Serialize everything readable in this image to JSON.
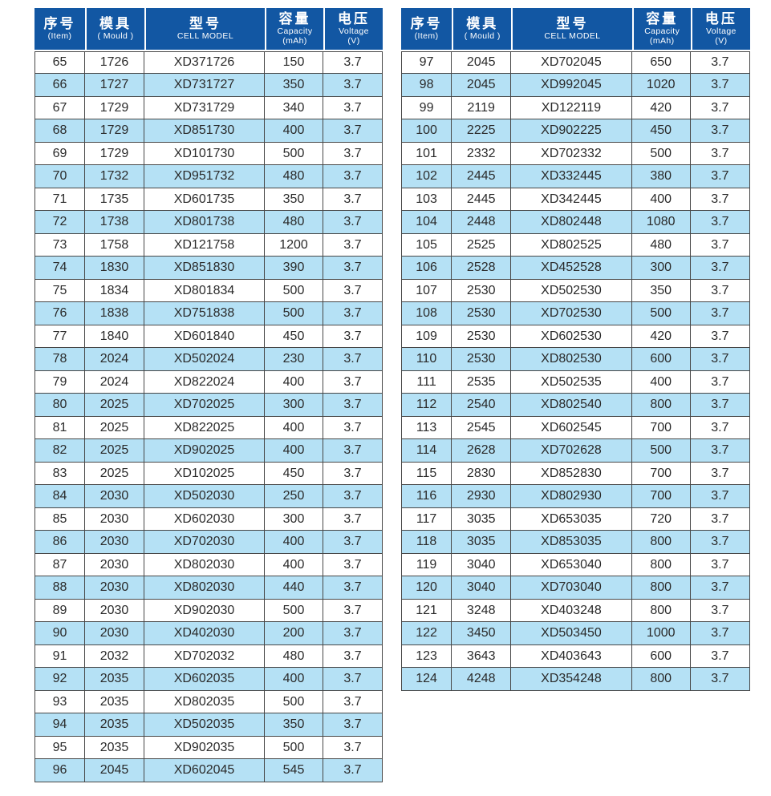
{
  "colors": {
    "header_bg": "#1257a3",
    "header_text": "#ffffff",
    "row_alt_bg": "#b5e1f5",
    "row_bg": "#ffffff",
    "border": "#474747",
    "text": "#2a2a2a"
  },
  "columns": [
    {
      "key": "item",
      "zh": "序号",
      "sub": [
        "(Item)"
      ]
    },
    {
      "key": "mould",
      "zh": "模具",
      "sub": [
        "( Mould )"
      ]
    },
    {
      "key": "model",
      "zh": "型号",
      "sub": [
        "CELL MODEL"
      ]
    },
    {
      "key": "capacity",
      "zh": "容量",
      "sub": [
        "Capacity",
        "(mAh)"
      ]
    },
    {
      "key": "voltage",
      "zh": "电压",
      "sub": [
        "Voltage",
        "(V)"
      ]
    }
  ],
  "tables": [
    {
      "name": "left",
      "rows": [
        [
          "65",
          "1726",
          "XD371726",
          "150",
          "3.7"
        ],
        [
          "66",
          "1727",
          "XD731727",
          "350",
          "3.7"
        ],
        [
          "67",
          "1729",
          "XD731729",
          "340",
          "3.7"
        ],
        [
          "68",
          "1729",
          "XD851730",
          "400",
          "3.7"
        ],
        [
          "69",
          "1729",
          "XD101730",
          "500",
          "3.7"
        ],
        [
          "70",
          "1732",
          "XD951732",
          "480",
          "3.7"
        ],
        [
          "71",
          "1735",
          "XD601735",
          "350",
          "3.7"
        ],
        [
          "72",
          "1738",
          "XD801738",
          "480",
          "3.7"
        ],
        [
          "73",
          "1758",
          "XD121758",
          "1200",
          "3.7"
        ],
        [
          "74",
          "1830",
          "XD851830",
          "390",
          "3.7"
        ],
        [
          "75",
          "1834",
          "XD801834",
          "500",
          "3.7"
        ],
        [
          "76",
          "1838",
          "XD751838",
          "500",
          "3.7"
        ],
        [
          "77",
          "1840",
          "XD601840",
          "450",
          "3.7"
        ],
        [
          "78",
          "2024",
          "XD502024",
          "230",
          "3.7"
        ],
        [
          "79",
          "2024",
          "XD822024",
          "400",
          "3.7"
        ],
        [
          "80",
          "2025",
          "XD702025",
          "300",
          "3.7"
        ],
        [
          "81",
          "2025",
          "XD822025",
          "400",
          "3.7"
        ],
        [
          "82",
          "2025",
          "XD902025",
          "400",
          "3.7"
        ],
        [
          "83",
          "2025",
          "XD102025",
          "450",
          "3.7"
        ],
        [
          "84",
          "2030",
          "XD502030",
          "250",
          "3.7"
        ],
        [
          "85",
          "2030",
          "XD602030",
          "300",
          "3.7"
        ],
        [
          "86",
          "2030",
          "XD702030",
          "400",
          "3.7"
        ],
        [
          "87",
          "2030",
          "XD802030",
          "400",
          "3.7"
        ],
        [
          "88",
          "2030",
          "XD802030",
          "440",
          "3.7"
        ],
        [
          "89",
          "2030",
          "XD902030",
          "500",
          "3.7"
        ],
        [
          "90",
          "2030",
          "XD402030",
          "200",
          "3.7"
        ],
        [
          "91",
          "2032",
          "XD702032",
          "480",
          "3.7"
        ],
        [
          "92",
          "2035",
          "XD602035",
          "400",
          "3.7"
        ],
        [
          "93",
          "2035",
          "XD802035",
          "500",
          "3.7"
        ],
        [
          "94",
          "2035",
          "XD502035",
          "350",
          "3.7"
        ],
        [
          "95",
          "2035",
          "XD902035",
          "500",
          "3.7"
        ],
        [
          "96",
          "2045",
          "XD602045",
          "545",
          "3.7"
        ]
      ]
    },
    {
      "name": "right",
      "rows": [
        [
          "97",
          "2045",
          "XD702045",
          "650",
          "3.7"
        ],
        [
          "98",
          "2045",
          "XD992045",
          "1020",
          "3.7"
        ],
        [
          "99",
          "2119",
          "XD122119",
          "420",
          "3.7"
        ],
        [
          "100",
          "2225",
          "XD902225",
          "450",
          "3.7"
        ],
        [
          "101",
          "2332",
          "XD702332",
          "500",
          "3.7"
        ],
        [
          "102",
          "2445",
          "XD332445",
          "380",
          "3.7"
        ],
        [
          "103",
          "2445",
          "XD342445",
          "400",
          "3.7"
        ],
        [
          "104",
          "2448",
          "XD802448",
          "1080",
          "3.7"
        ],
        [
          "105",
          "2525",
          "XD802525",
          "480",
          "3.7"
        ],
        [
          "106",
          "2528",
          "XD452528",
          "300",
          "3.7"
        ],
        [
          "107",
          "2530",
          "XD502530",
          "350",
          "3.7"
        ],
        [
          "108",
          "2530",
          "XD702530",
          "500",
          "3.7"
        ],
        [
          "109",
          "2530",
          "XD602530",
          "420",
          "3.7"
        ],
        [
          "110",
          "2530",
          "XD802530",
          "600",
          "3.7"
        ],
        [
          "111",
          "2535",
          "XD502535",
          "400",
          "3.7"
        ],
        [
          "112",
          "2540",
          "XD802540",
          "800",
          "3.7"
        ],
        [
          "113",
          "2545",
          "XD602545",
          "700",
          "3.7"
        ],
        [
          "114",
          "2628",
          "XD702628",
          "500",
          "3.7"
        ],
        [
          "115",
          "2830",
          "XD852830",
          "700",
          "3.7"
        ],
        [
          "116",
          "2930",
          "XD802930",
          "700",
          "3.7"
        ],
        [
          "117",
          "3035",
          "XD653035",
          "720",
          "3.7"
        ],
        [
          "118",
          "3035",
          "XD853035",
          "800",
          "3.7"
        ],
        [
          "119",
          "3040",
          "XD653040",
          "800",
          "3.7"
        ],
        [
          "120",
          "3040",
          "XD703040",
          "800",
          "3.7"
        ],
        [
          "121",
          "3248",
          "XD403248",
          "800",
          "3.7"
        ],
        [
          "122",
          "3450",
          "XD503450",
          "1000",
          "3.7"
        ],
        [
          "123",
          "3643",
          "XD403643",
          "600",
          "3.7"
        ],
        [
          "124",
          "4248",
          "XD354248",
          "800",
          "3.7"
        ]
      ]
    }
  ]
}
